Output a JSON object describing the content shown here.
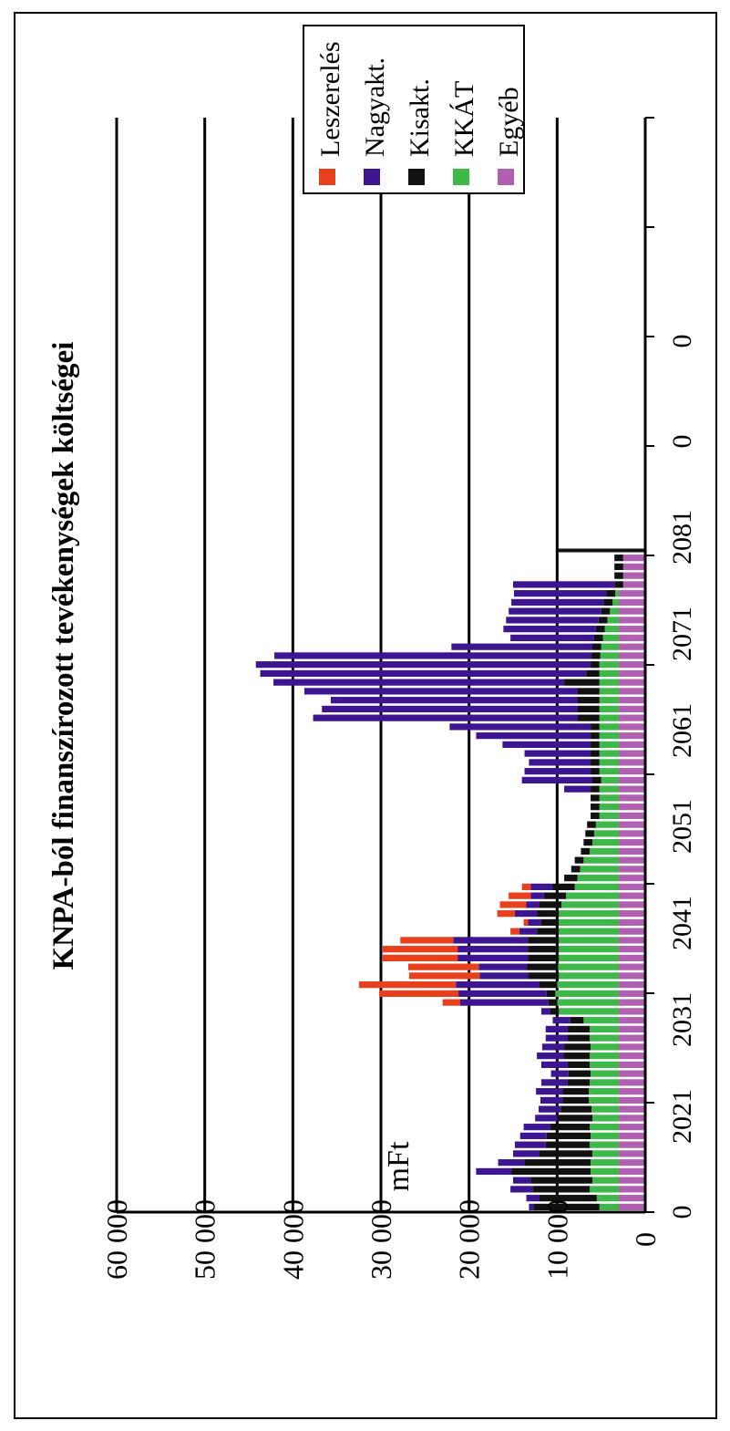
{
  "chart_data": {
    "type": "bar",
    "stacked": true,
    "title": "KNPA-ból finanszírozott  tevékenységek költségei",
    "ylabel": "mFt",
    "xlabel": "",
    "ylim": [
      0,
      60000
    ],
    "yticks": [
      "0",
      "10 000",
      "20 000",
      "30 000",
      "40 000",
      "50 000",
      "60 000"
    ],
    "xtick_labels": [
      "0",
      "2021",
      "2031",
      "2041",
      "2051",
      "2061",
      "2071",
      "2081",
      "0",
      "0"
    ],
    "grid": true,
    "legend_position": "top-right",
    "colors": {
      "Leszerelés": "#e8401c",
      "Nagyakt.": "#3e1590",
      "Kisakt.": "#111111",
      "KKÁT": "#3fb84a",
      "Egyéb": "#b060b0"
    },
    "legend": [
      "Leszerelés",
      "Nagyakt.",
      "Kisakt.",
      "KKÁT",
      "Egyéb"
    ],
    "x": [
      2011,
      2012,
      2013,
      2014,
      2015,
      2016,
      2017,
      2018,
      2019,
      2020,
      2021,
      2022,
      2023,
      2024,
      2025,
      2026,
      2027,
      2028,
      2029,
      2030,
      2031,
      2032,
      2033,
      2034,
      2035,
      2036,
      2037,
      2038,
      2039,
      2040,
      2041,
      2042,
      2043,
      2044,
      2045,
      2046,
      2047,
      2048,
      2049,
      2050,
      2051,
      2052,
      2053,
      2054,
      2055,
      2056,
      2057,
      2058,
      2059,
      2060,
      2061,
      2062,
      2063,
      2064,
      2065,
      2066,
      2067,
      2068,
      2069,
      2070,
      2071,
      2072,
      2073,
      2074,
      2075,
      2076,
      2077,
      2078,
      2079,
      2080,
      2081,
      2082,
      2083,
      2084
    ],
    "series": [
      {
        "name": "Egyéb",
        "values": [
          3000,
          3000,
          3000,
          3000,
          3000,
          3000,
          3000,
          3000,
          3000,
          3000,
          3000,
          3000,
          3000,
          3000,
          3000,
          3000,
          3000,
          3000,
          3000,
          3000,
          3000,
          3000,
          3000,
          3000,
          3000,
          3000,
          3000,
          3000,
          3000,
          3000,
          3000,
          3000,
          3000,
          3000,
          3000,
          3000,
          3000,
          3000,
          3000,
          3000,
          3000,
          3000,
          3000,
          3000,
          3000,
          3000,
          3000,
          3000,
          3000,
          3000,
          3000,
          3000,
          3000,
          3000,
          3000,
          3000,
          3000,
          3000,
          3000,
          3000,
          3000,
          3000,
          3000,
          3000,
          3000,
          3000,
          3000,
          3000,
          3000,
          3000,
          2500,
          2500,
          2500,
          2500
        ]
      },
      {
        "name": "KKÁT",
        "values": [
          2200,
          2500,
          3300,
          3000,
          3200,
          3200,
          3000,
          3300,
          3200,
          3300,
          3000,
          3100,
          3400,
          3400,
          3300,
          3200,
          3300,
          3300,
          3200,
          3300,
          3300,
          4000,
          6800,
          7000,
          7200,
          7000,
          6800,
          6900,
          6800,
          6800,
          6800,
          6800,
          6800,
          6800,
          6500,
          6000,
          5000,
          4700,
          4400,
          4000,
          3300,
          3000,
          2800,
          2600,
          2200,
          2200,
          2200,
          2200,
          2000,
          2200,
          2200,
          2200,
          2200,
          2200,
          2200,
          2200,
          2200,
          2200,
          2200,
          2200,
          2200,
          2200,
          2100,
          2000,
          1800,
          1600,
          1300,
          1000,
          700,
          400,
          0,
          0,
          0,
          0
        ]
      },
      {
        "name": "Kisakt.",
        "values": [
          7500,
          6500,
          6500,
          7000,
          9000,
          7500,
          6000,
          5000,
          5000,
          4500,
          4000,
          3500,
          3000,
          3000,
          2500,
          2500,
          2500,
          3000,
          3000,
          2500,
          2500,
          1500,
          1000,
          1000,
          1000,
          2000,
          3500,
          3500,
          3500,
          3500,
          3500,
          2500,
          2000,
          2500,
          2500,
          2500,
          2500,
          1500,
          1000,
          1000,
          1000,
          1000,
          1000,
          1000,
          1000,
          1000,
          1000,
          1000,
          1000,
          1000,
          1000,
          1000,
          1000,
          1000,
          1000,
          2500,
          2500,
          2500,
          2500,
          4000,
          1500,
          1000,
          1000,
          1000,
          1000,
          1000,
          1000,
          1000,
          1000,
          1000,
          1000,
          1000,
          1000,
          1000
        ]
      },
      {
        "name": "Nagyakt.",
        "values": [
          500,
          1500,
          2500,
          2000,
          4000,
          3000,
          3000,
          3500,
          3000,
          3000,
          2500,
          2500,
          2500,
          3000,
          3000,
          2000,
          3000,
          3000,
          2500,
          2500,
          2500,
          2000,
          1000,
          10000,
          10000,
          9500,
          5500,
          5500,
          8000,
          8000,
          8500,
          2000,
          1500,
          2500,
          1500,
          1500,
          2500,
          0,
          0,
          0,
          0,
          0,
          0,
          0,
          0,
          0,
          0,
          3000,
          8000,
          7500,
          7000,
          7500,
          10000,
          13000,
          16000,
          30000,
          29000,
          28000,
          31000,
          33000,
          37000,
          38000,
          36000,
          16000,
          9500,
          10500,
          10500,
          10500,
          10500,
          10500,
          11500,
          0,
          0,
          0
        ]
      },
      {
        "name": "Leszerelés",
        "values": [
          0,
          0,
          0,
          0,
          0,
          0,
          0,
          0,
          0,
          0,
          0,
          0,
          0,
          0,
          0,
          0,
          0,
          0,
          0,
          0,
          0,
          0,
          0,
          2000,
          9000,
          11000,
          8000,
          8000,
          8500,
          8500,
          6000,
          1000,
          500,
          2000,
          3000,
          2500,
          1000,
          0,
          0,
          0,
          0,
          0,
          0,
          0,
          0,
          0,
          0,
          0,
          0,
          0,
          0,
          0,
          0,
          0,
          0,
          0,
          0,
          0,
          0,
          0,
          0,
          0,
          0,
          0,
          0,
          0,
          0,
          0,
          0,
          0,
          0,
          0,
          0,
          0
        ]
      }
    ]
  }
}
